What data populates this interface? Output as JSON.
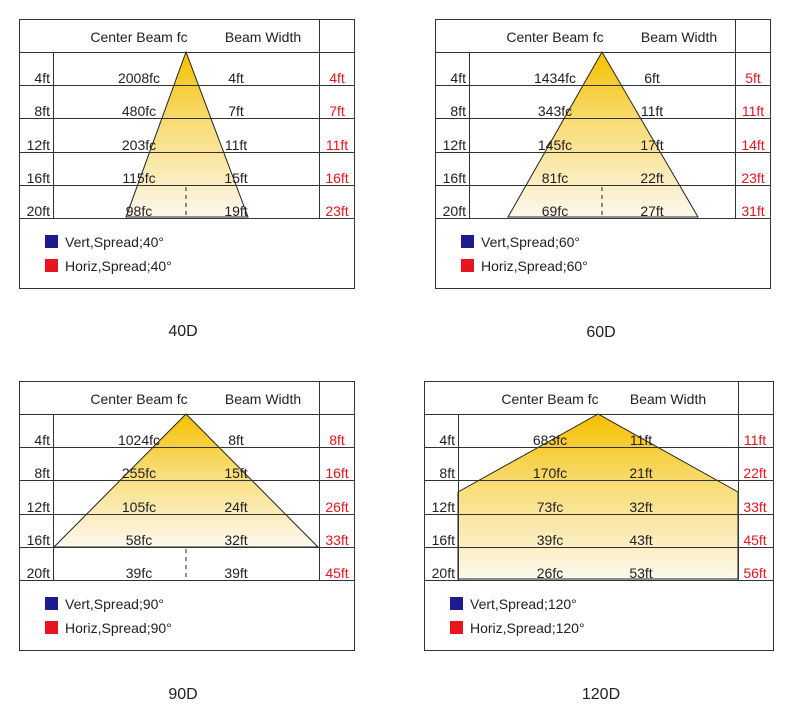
{
  "colors": {
    "vert_swatch": "#1c1c8c",
    "horiz_swatch": "#e8141e",
    "beam_top": "#f5c000",
    "beam_bottom": "#fdf8ee",
    "red_text": "#e8141e",
    "grid_line": "#333333"
  },
  "chart_data": [
    {
      "type": "table",
      "title": "40D",
      "header": {
        "center_beam": "Center Beam fc",
        "beam_width": "Beam Width"
      },
      "rows": [
        {
          "distance": "4ft",
          "center_beam": "2008fc",
          "vert": "4ft",
          "horiz": "4ft"
        },
        {
          "distance": "8ft",
          "center_beam": "480fc",
          "vert": "7ft",
          "horiz": "7ft"
        },
        {
          "distance": "12ft",
          "center_beam": "203fc",
          "vert": "11ft",
          "horiz": "11ft"
        },
        {
          "distance": "16ft",
          "center_beam": "115fc",
          "vert": "15ft",
          "horiz": "16ft"
        },
        {
          "distance": "20ft",
          "center_beam": "98fc",
          "vert": "19ft",
          "horiz": "23ft"
        }
      ],
      "legend": {
        "vert": "Vert,Spread;40°",
        "horiz": "Horiz,Spread;40°"
      }
    },
    {
      "type": "table",
      "title": "60D",
      "header": {
        "center_beam": "Center Beam fc",
        "beam_width": "Beam Width"
      },
      "rows": [
        {
          "distance": "4ft",
          "center_beam": "1434fc",
          "vert": "6ft",
          "horiz": "5ft"
        },
        {
          "distance": "8ft",
          "center_beam": "343fc",
          "vert": "11ft",
          "horiz": "11ft"
        },
        {
          "distance": "12ft",
          "center_beam": "145fc",
          "vert": "17ft",
          "horiz": "14ft"
        },
        {
          "distance": "16ft",
          "center_beam": "81fc",
          "vert": "22ft",
          "horiz": "23ft"
        },
        {
          "distance": "20ft",
          "center_beam": "69fc",
          "vert": "27ft",
          "horiz": "31ft"
        }
      ],
      "legend": {
        "vert": "Vert,Spread;60°",
        "horiz": "Horiz,Spread;60°"
      }
    },
    {
      "type": "table",
      "title": "90D",
      "header": {
        "center_beam": "Center Beam fc",
        "beam_width": "Beam Width"
      },
      "rows": [
        {
          "distance": "4ft",
          "center_beam": "1024fc",
          "vert": "8ft",
          "horiz": "8ft"
        },
        {
          "distance": "8ft",
          "center_beam": "255fc",
          "vert": "15ft",
          "horiz": "16ft"
        },
        {
          "distance": "12ft",
          "center_beam": "105fc",
          "vert": "24ft",
          "horiz": "26ft"
        },
        {
          "distance": "16ft",
          "center_beam": "58fc",
          "vert": "32ft",
          "horiz": "33ft"
        },
        {
          "distance": "20ft",
          "center_beam": "39fc",
          "vert": "39ft",
          "horiz": "45ft"
        }
      ],
      "legend": {
        "vert": "Vert,Spread;90°",
        "horiz": "Horiz,Spread;90°"
      }
    },
    {
      "type": "table",
      "title": "120D",
      "header": {
        "center_beam": "Center Beam fc",
        "beam_width": "Beam Width"
      },
      "rows": [
        {
          "distance": "4ft",
          "center_beam": "683fc",
          "vert": "11ft",
          "horiz": "11ft"
        },
        {
          "distance": "8ft",
          "center_beam": "170fc",
          "vert": "21ft",
          "horiz": "22ft"
        },
        {
          "distance": "12ft",
          "center_beam": "73fc",
          "vert": "32ft",
          "horiz": "33ft"
        },
        {
          "distance": "16ft",
          "center_beam": "39fc",
          "vert": "43ft",
          "horiz": "45ft"
        },
        {
          "distance": "20ft",
          "center_beam": "26fc",
          "vert": "53ft",
          "horiz": "56ft"
        }
      ],
      "legend": {
        "vert": "Vert,Spread;120°",
        "horiz": "Horiz,Spread;120°"
      }
    }
  ]
}
